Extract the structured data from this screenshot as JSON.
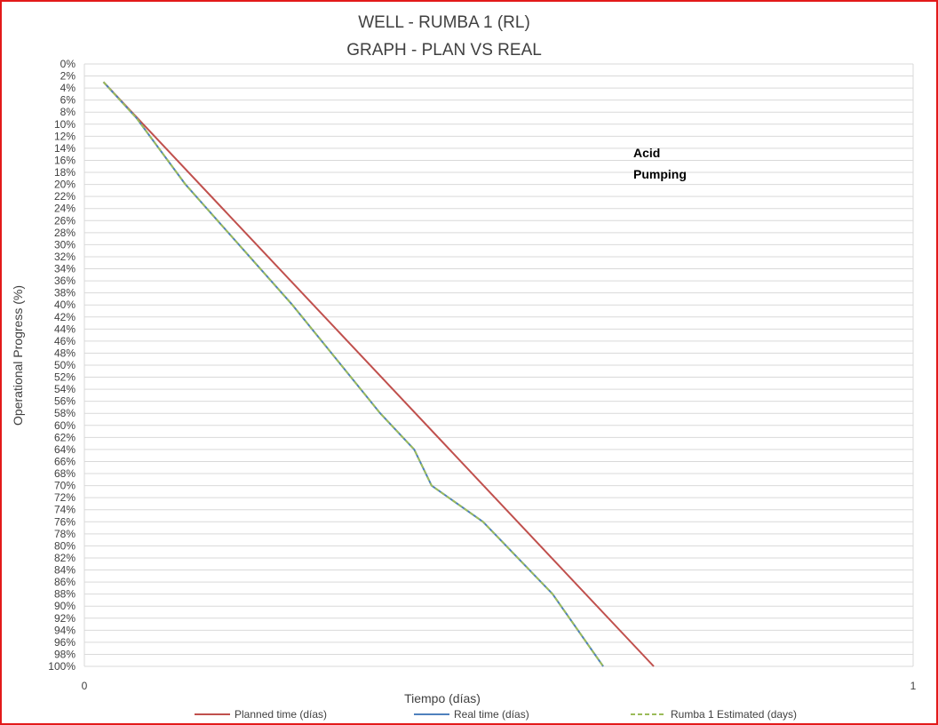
{
  "chart_data": {
    "type": "line",
    "title": [
      "WELL -  RUMBA 1 (RL)",
      "GRAPH  - PLAN VS REAL"
    ],
    "xlabel": "Tiempo (días)",
    "ylabel": "Operational Progress (%)",
    "xlim": [
      0,
      1
    ],
    "x_ticks": [
      "0",
      "1"
    ],
    "ylim": [
      0,
      100
    ],
    "y_inverted": true,
    "y_tick_step": 2,
    "y_tick_suffix": "%",
    "grid": true,
    "legend_position": "bottom",
    "annotation": [
      "Acid",
      "Pumping"
    ],
    "series": [
      {
        "name": "Planned time (días)",
        "color": "#c0504d",
        "style": "solid",
        "x": [
          0.023,
          0.071,
          0.687
        ],
        "y": [
          3,
          10,
          100
        ]
      },
      {
        "name": "Real time (días)",
        "color": "#4f81bd",
        "style": "solid",
        "x": [
          0.023,
          0.063,
          0.122,
          0.251,
          0.357,
          0.398,
          0.419,
          0.481,
          0.565,
          0.626
        ],
        "y": [
          3,
          9,
          20,
          40,
          58,
          64,
          70,
          76,
          88,
          100
        ]
      },
      {
        "name": "Rumba 1 Estimated (days)",
        "color": "#9bbb59",
        "style": "dashed",
        "x": [
          0.023,
          0.063,
          0.122,
          0.251,
          0.357,
          0.398,
          0.419,
          0.481,
          0.565,
          0.626
        ],
        "y": [
          3,
          9,
          20,
          40,
          58,
          64,
          70,
          76,
          88,
          100
        ]
      }
    ]
  }
}
